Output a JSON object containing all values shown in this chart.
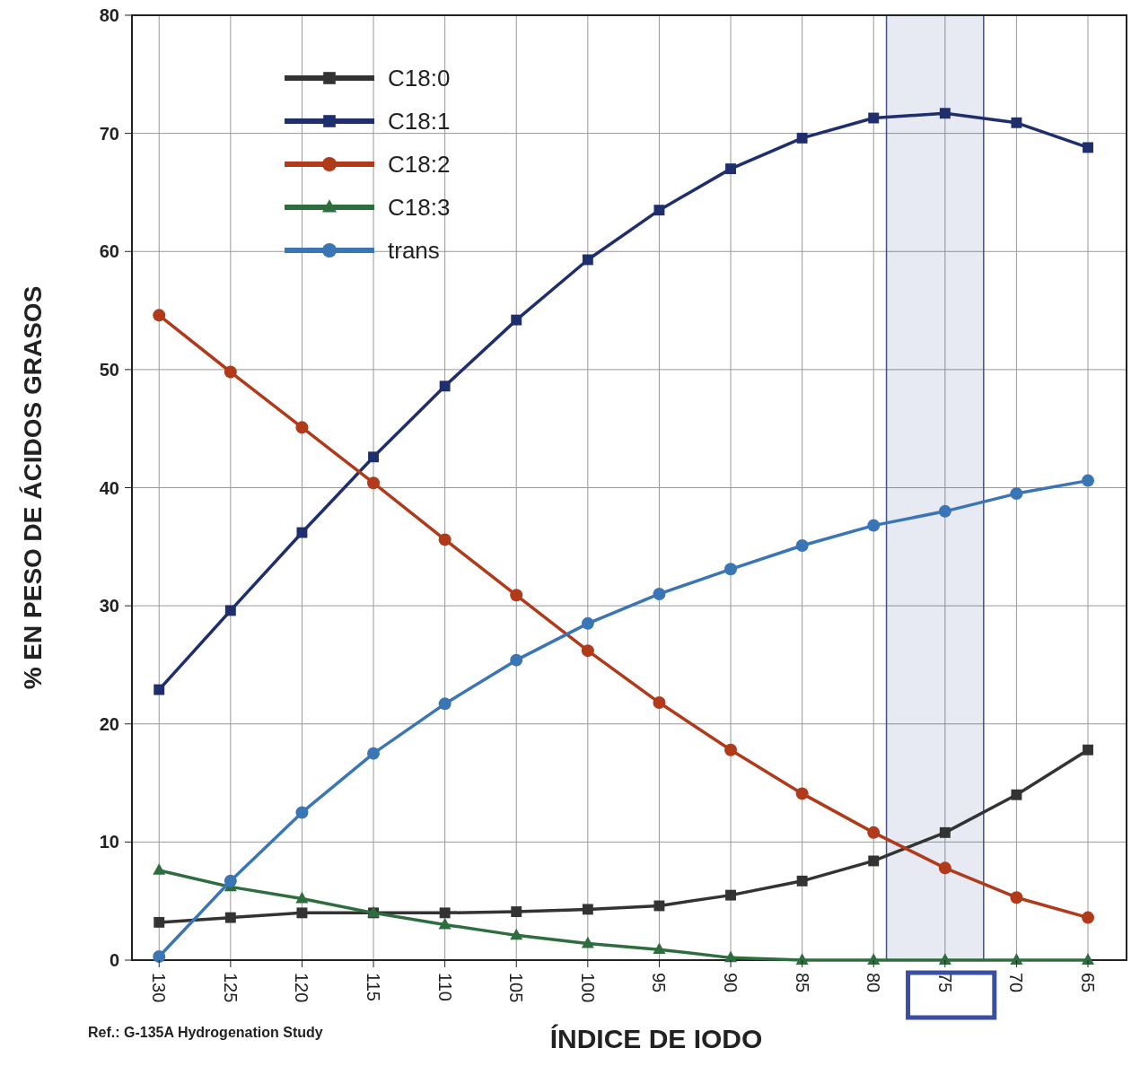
{
  "chart_data": {
    "type": "line",
    "xlabel": "ÍNDICE DE IODO",
    "ylabel": "% EN PESO DE ÁCIDOS GRASOS",
    "annotations": [
      "Ref.: G-135A  Hydrogenation Study"
    ],
    "x": [
      130,
      125,
      120,
      115,
      110,
      105,
      100,
      95,
      90,
      85,
      80,
      75,
      70,
      65
    ],
    "xlim": [
      131.9,
      62.3
    ],
    "xticks": [
      130,
      125,
      120,
      115,
      110,
      105,
      100,
      95,
      90,
      85,
      80,
      75,
      70,
      65
    ],
    "ylim": [
      0,
      80
    ],
    "yticks": [
      0,
      10,
      20,
      30,
      40,
      50,
      60,
      70,
      80
    ],
    "grid": true,
    "legend": "top left",
    "tick_labels": "xy",
    "bands": [
      {
        "axis": "x",
        "from": 79.1,
        "to": 72.3,
        "color": "#3a4fa0"
      }
    ],
    "series": [
      {
        "name": "C18:0",
        "color": "#333333",
        "marker": "square",
        "values": [
          3.2,
          3.6,
          4.0,
          4.0,
          4.0,
          4.1,
          4.3,
          4.6,
          5.5,
          6.7,
          8.4,
          10.8,
          14.0,
          17.8
        ]
      },
      {
        "name": "C18:1",
        "color": "#1f2f6e",
        "marker": "square",
        "values": [
          22.9,
          29.6,
          36.2,
          42.6,
          48.6,
          54.2,
          59.3,
          63.5,
          67.0,
          69.6,
          71.3,
          71.7,
          70.9,
          68.8
        ]
      },
      {
        "name": "C18:2",
        "color": "#b03a1a",
        "marker": "circle",
        "values": [
          54.6,
          49.8,
          45.1,
          40.4,
          35.6,
          30.9,
          26.2,
          21.8,
          17.8,
          14.1,
          10.8,
          7.8,
          5.3,
          3.6
        ]
      },
      {
        "name": "C18:3",
        "color": "#2e6e3e",
        "marker": "triangle",
        "values": [
          7.6,
          6.2,
          5.2,
          4.0,
          3.0,
          2.1,
          1.4,
          0.9,
          0.2,
          0,
          0,
          0,
          0,
          0
        ]
      },
      {
        "name": "trans",
        "color": "#3a75b5",
        "marker": "circle",
        "values": [
          0.3,
          6.7,
          12.5,
          17.5,
          21.7,
          25.4,
          28.5,
          31.0,
          33.1,
          35.1,
          36.8,
          38.0,
          39.5,
          40.6
        ]
      }
    ]
  }
}
